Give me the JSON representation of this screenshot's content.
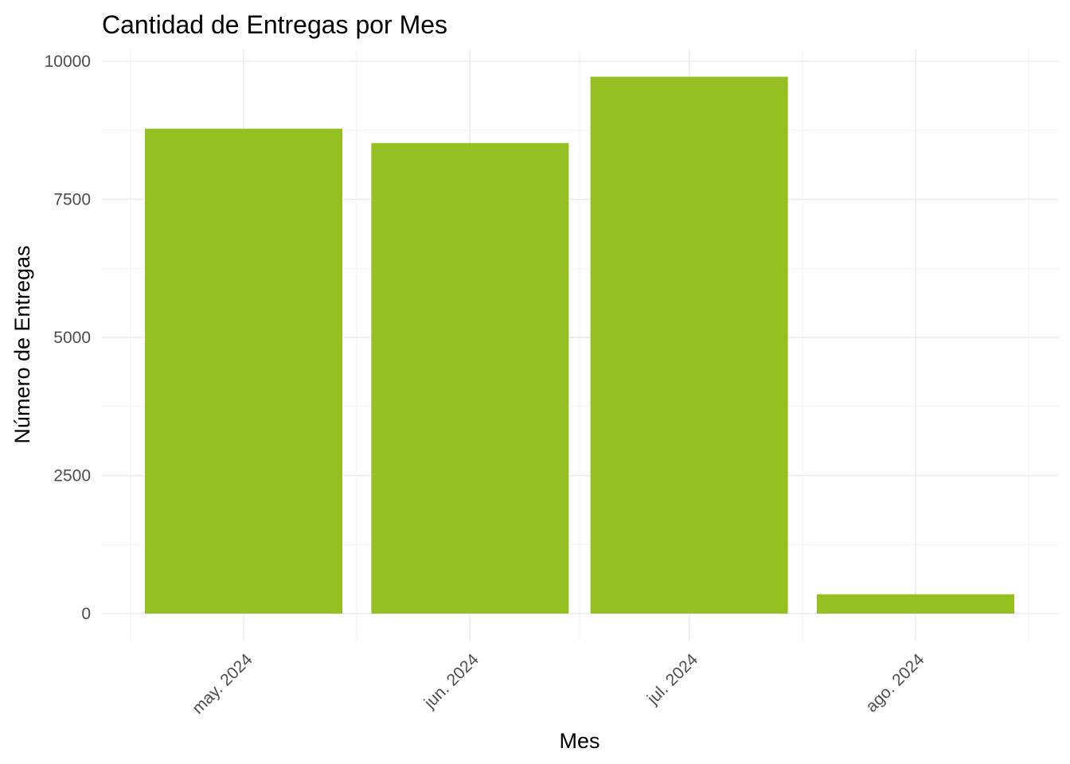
{
  "chart_data": {
    "type": "bar",
    "title": "Cantidad de Entregas por Mes",
    "xlabel": "Mes",
    "ylabel": "Número de Entregas",
    "categories": [
      "may. 2024",
      "jun. 2024",
      "jul. 2024",
      "ago. 2024"
    ],
    "x_dates": [
      "2024-05",
      "2024-06",
      "2024-07",
      "2024-08"
    ],
    "values": [
      8780,
      8520,
      9720,
      350
    ],
    "ylim": [
      0,
      10000
    ],
    "yticks": [
      0,
      2500,
      5000,
      7500,
      10000
    ],
    "ytick_labels": [
      "0",
      "2500",
      "5000",
      "7500",
      "10000"
    ],
    "bar_color": "#95c021",
    "grid": true,
    "legend": "none"
  }
}
